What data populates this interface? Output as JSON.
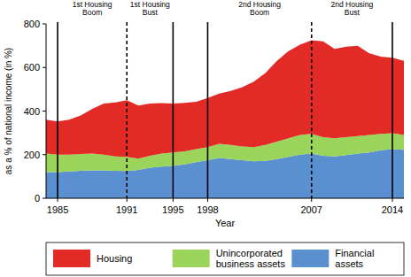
{
  "chart_data": {
    "type": "area",
    "stacked": true,
    "x_label": "Year",
    "y_label": "as a % of national income (in %)",
    "x": [
      1984,
      1985,
      1986,
      1987,
      1988,
      1989,
      1990,
      1991,
      1992,
      1993,
      1994,
      1995,
      1996,
      1997,
      1998,
      1999,
      2000,
      2001,
      2002,
      2003,
      2004,
      2005,
      2006,
      2007,
      2008,
      2009,
      2010,
      2011,
      2012,
      2013,
      2014,
      2015
    ],
    "series": [
      {
        "name": "Financial assets",
        "color": "#5a8fd0",
        "values": [
          120,
          120,
          123,
          126,
          128,
          128,
          126,
          125,
          130,
          140,
          145,
          148,
          155,
          165,
          175,
          185,
          180,
          175,
          170,
          172,
          180,
          190,
          200,
          205,
          195,
          192,
          198,
          205,
          210,
          220,
          225,
          222
        ]
      },
      {
        "name": "Unincorporated business assets",
        "color": "#9bd45a",
        "values": [
          85,
          80,
          77,
          77,
          77,
          72,
          66,
          65,
          52,
          55,
          60,
          62,
          60,
          60,
          60,
          65,
          65,
          63,
          65,
          73,
          80,
          85,
          90,
          90,
          85,
          83,
          82,
          80,
          80,
          75,
          73,
          68
        ]
      },
      {
        "name": "Housing",
        "color": "#e22b26",
        "values": [
          155,
          152,
          160,
          177,
          205,
          235,
          248,
          260,
          243,
          240,
          232,
          225,
          223,
          218,
          225,
          230,
          247,
          272,
          300,
          330,
          370,
          400,
          415,
          430,
          440,
          410,
          415,
          415,
          375,
          355,
          347,
          340
        ]
      }
    ],
    "xlim": [
      1984,
      2015
    ],
    "ylim": [
      0,
      800
    ],
    "xticks": [
      1985,
      1991,
      1995,
      1998,
      2007,
      2014
    ],
    "yticks": [
      0,
      200,
      400,
      600,
      800
    ],
    "grid": false,
    "legend": "bottom",
    "vlines": [
      {
        "x": 1985,
        "line_style": "solid"
      },
      {
        "x": 1991,
        "line_style": "dashed"
      },
      {
        "x": 1995,
        "line_style": "solid"
      },
      {
        "x": 1998,
        "line_style": "solid"
      },
      {
        "x": 2007,
        "line_style": "dashed"
      },
      {
        "x": 2014,
        "line_style": "solid"
      }
    ],
    "annotations": [
      {
        "text": [
          "1st Housing",
          "Boom"
        ],
        "x": 1988
      },
      {
        "text": [
          "1st Housing",
          "Bust"
        ],
        "x": 1993
      },
      {
        "text": [
          "2nd Housing",
          "Boom"
        ],
        "x": 2002.5
      },
      {
        "text": [
          "2nd Housing",
          "Bust"
        ],
        "x": 2010.5
      }
    ]
  }
}
